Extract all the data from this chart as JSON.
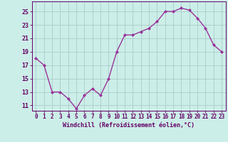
{
  "x": [
    0,
    1,
    2,
    3,
    4,
    5,
    6,
    7,
    8,
    9,
    10,
    11,
    12,
    13,
    14,
    15,
    16,
    17,
    18,
    19,
    20,
    21,
    22,
    23
  ],
  "y": [
    18.0,
    17.0,
    13.0,
    13.0,
    12.0,
    10.5,
    12.5,
    13.5,
    12.5,
    15.0,
    19.0,
    21.5,
    21.5,
    22.0,
    22.5,
    23.5,
    25.0,
    25.0,
    25.5,
    25.2,
    24.0,
    22.5,
    20.0,
    19.0
  ],
  "line_color": "#993399",
  "marker": "D",
  "marker_size": 2,
  "bg_color": "#cceee8",
  "grid_color": "#aacccc",
  "ylabel_ticks": [
    11,
    13,
    15,
    17,
    19,
    21,
    23,
    25
  ],
  "xlabel": "Windchill (Refroidissement éolien,°C)",
  "xlim": [
    -0.5,
    23.5
  ],
  "ylim": [
    10.2,
    26.5
  ],
  "xticks": [
    0,
    1,
    2,
    3,
    4,
    5,
    6,
    7,
    8,
    9,
    10,
    11,
    12,
    13,
    14,
    15,
    16,
    17,
    18,
    19,
    20,
    21,
    22,
    23
  ],
  "tick_color": "#660066",
  "xlabel_color": "#660066",
  "tick_fontsize": 5.5,
  "xlabel_fontsize": 6.0,
  "linewidth": 1.0
}
